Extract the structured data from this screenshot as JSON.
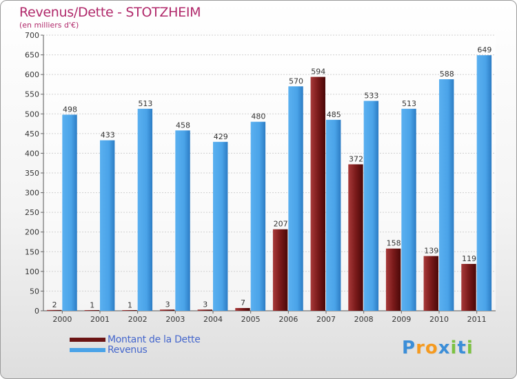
{
  "chart_data": {
    "type": "bar",
    "title": "Revenus/Dette - STOTZHEIM",
    "subtitle": "(en milliers d'€)",
    "categories": [
      "2000",
      "2001",
      "2002",
      "2003",
      "2004",
      "2005",
      "2006",
      "2007",
      "2008",
      "2009",
      "2010",
      "2011"
    ],
    "series": [
      {
        "name": "Montant de la Dette",
        "color": "#7a1a1a",
        "values": [
          2,
          1,
          1,
          3,
          3,
          7,
          207,
          594,
          372,
          158,
          139,
          119
        ]
      },
      {
        "name": "Revenus",
        "color": "#4aa3e8",
        "values": [
          498,
          433,
          513,
          458,
          429,
          480,
          570,
          485,
          533,
          513,
          588,
          649
        ]
      }
    ],
    "ylim": [
      0,
      700
    ],
    "yticks": [
      "0",
      "50",
      "100",
      "150",
      "200",
      "250",
      "300",
      "350",
      "400",
      "450",
      "500",
      "550",
      "600",
      "650",
      "700"
    ],
    "grid": true,
    "legend": "bottom-left"
  },
  "logo": {
    "letters": [
      "P",
      "r",
      "o",
      "x",
      "i",
      "t",
      "i"
    ],
    "colors": [
      "#3b8ed8",
      "#f59a1f",
      "#f59a1f",
      "#3b8ed8",
      "#7cc242",
      "#3b8ed8",
      "#7cc242"
    ]
  }
}
